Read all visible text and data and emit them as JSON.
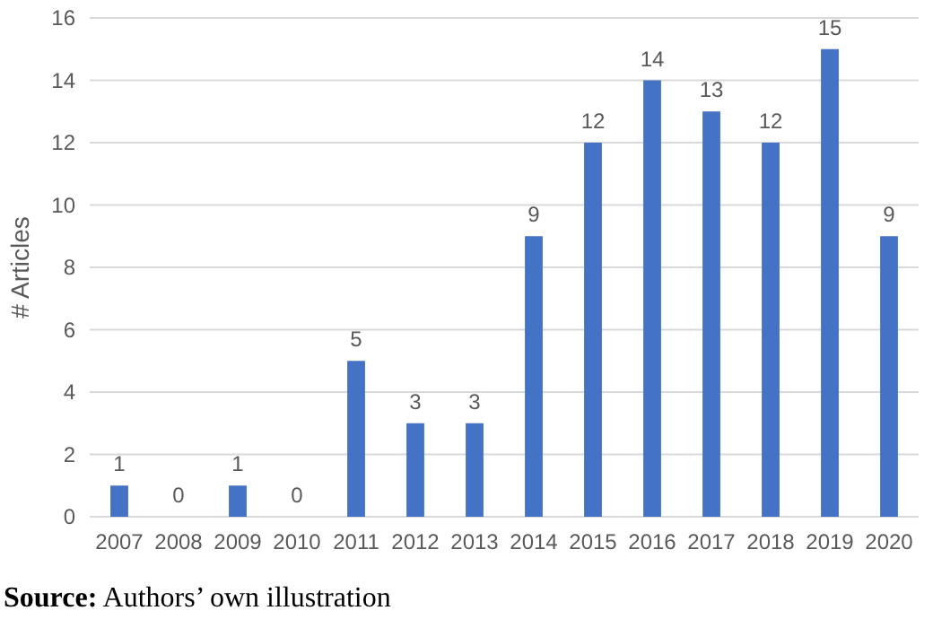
{
  "chart_data": {
    "type": "bar",
    "ylabel": "# Articles",
    "categories": [
      "2007",
      "2008",
      "2009",
      "2010",
      "2011",
      "2012",
      "2013",
      "2014",
      "2015",
      "2016",
      "2017",
      "2018",
      "2019",
      "2020"
    ],
    "values": [
      1,
      0,
      1,
      0,
      5,
      3,
      3,
      9,
      12,
      14,
      13,
      12,
      15,
      9
    ],
    "color": "#4472c4",
    "ylim": [
      0,
      16
    ],
    "yticks": [
      0,
      2,
      4,
      6,
      8,
      10,
      12,
      14,
      16
    ],
    "grid": "y",
    "data_labels": true,
    "annotations": [
      "**Source:** Authors’ own illustration"
    ]
  }
}
